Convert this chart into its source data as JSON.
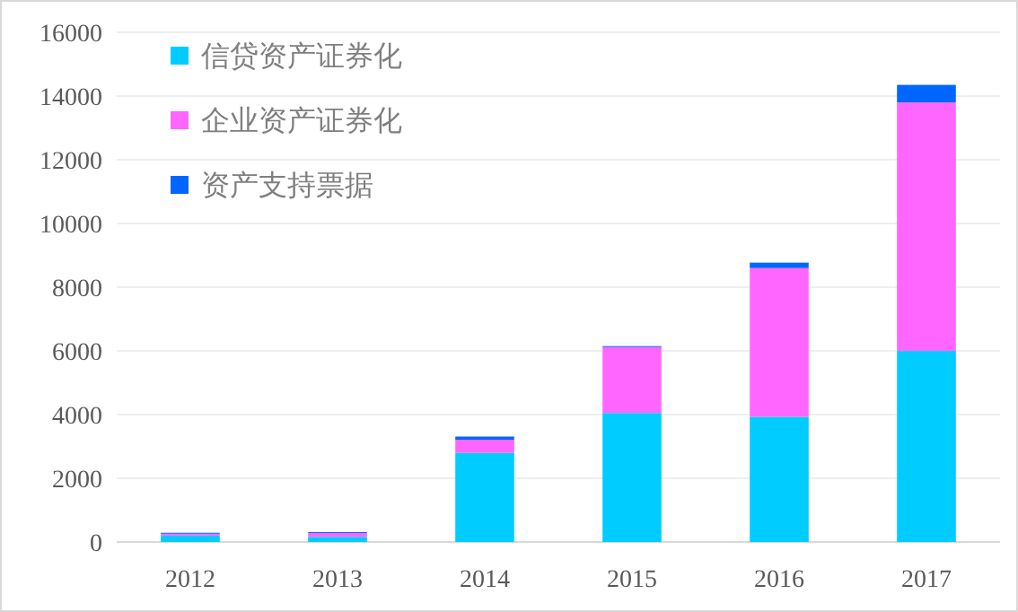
{
  "chart_data": {
    "type": "bar",
    "stacked": true,
    "categories": [
      "2012",
      "2013",
      "2014",
      "2015",
      "2016",
      "2017"
    ],
    "series": [
      {
        "name": "信贷资产证券化",
        "color": "#00ccff",
        "values": [
          200,
          160,
          2800,
          4050,
          3930,
          6000
        ]
      },
      {
        "name": "企业资产证券化",
        "color": "#ff66ff",
        "values": [
          60,
          120,
          410,
          2070,
          4670,
          7800
        ]
      },
      {
        "name": "资产支持票据",
        "color": "#0066ff",
        "values": [
          30,
          30,
          100,
          30,
          170,
          550
        ]
      }
    ],
    "ylim": [
      0,
      16000
    ],
    "yticks": [
      0,
      2000,
      4000,
      6000,
      8000,
      10000,
      12000,
      14000,
      16000
    ],
    "grid": "y",
    "legend": "top left"
  }
}
